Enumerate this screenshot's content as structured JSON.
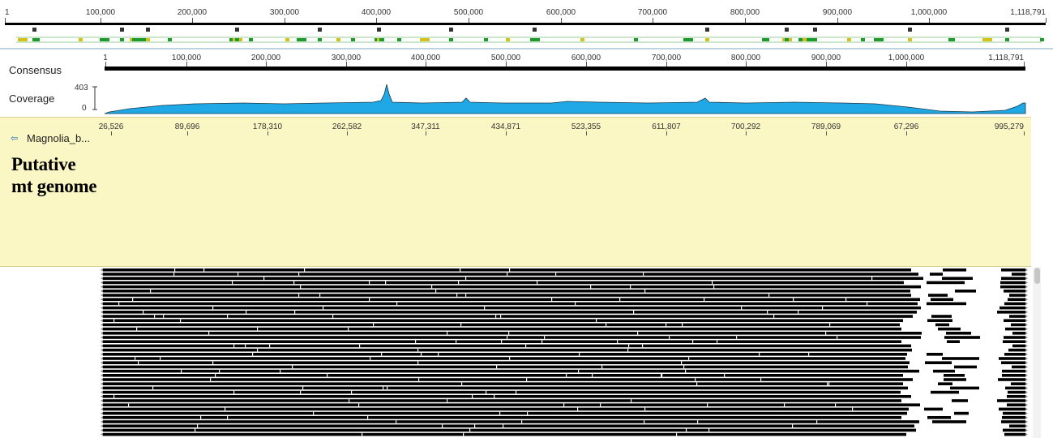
{
  "overview_ruler": {
    "ticks": [
      "1",
      "100,000",
      "200,000",
      "300,000",
      "400,000",
      "500,000",
      "600,000",
      "700,000",
      "800,000",
      "900,000",
      "1,000,000",
      "1,118,791"
    ]
  },
  "tracks": {
    "consensus_label": "Consensus",
    "coverage_label": "Coverage",
    "coverage_max": "403",
    "coverage_min": "0",
    "sequence_label": "Magnolia_b...",
    "annotation_title_line1": "Putative",
    "annotation_title_line2": "mt genome"
  },
  "consensus_ruler": {
    "ticks": [
      "1",
      "100,000",
      "200,000",
      "300,000",
      "400,000",
      "500,000",
      "600,000",
      "700,000",
      "800,000",
      "900,000",
      "1,000,000",
      "1,118,791"
    ]
  },
  "sequence_ruler": {
    "ticks": [
      "26,526",
      "89,696",
      "178,310",
      "262,582",
      "347,311",
      "434,871",
      "523,355",
      "611,807",
      "700,292",
      "789,069",
      "67,296",
      "995,279"
    ]
  },
  "colors": {
    "coverage_fill": "#1ea8e6",
    "gene_gray": "#b0b0b0",
    "gene_black": "#111111",
    "gene_yellow": "#d4c21a",
    "gene_green": "#1e9a2e",
    "annotation_bg": "#fbf7c4",
    "reads": "#000000"
  },
  "icons": {
    "sequence_icon": "sequence-link-icon"
  }
}
